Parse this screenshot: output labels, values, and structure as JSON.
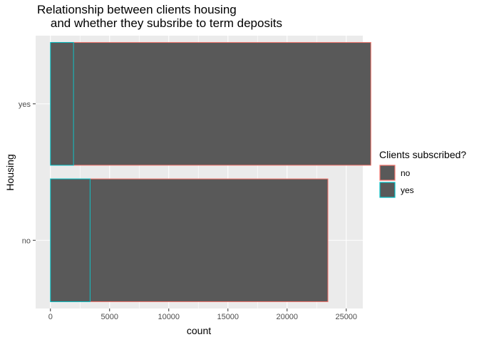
{
  "chart_data": {
    "type": "bar",
    "orientation": "horizontal",
    "stacked": true,
    "title_lines": [
      "Relationship between clients housing",
      "    and whether they subsribe to term deposits"
    ],
    "xlabel": "count",
    "ylabel": "Housing",
    "categories": [
      "no",
      "yes"
    ],
    "series": [
      {
        "name": "no",
        "values": [
          20100,
          25130
        ],
        "outline_color": "#F8766D"
      },
      {
        "name": "yes",
        "values": [
          3350,
          1950
        ],
        "outline_color": "#00BFC4"
      }
    ],
    "xlim": [
      -1250,
      26400
    ],
    "xticks": [
      0,
      5000,
      10000,
      15000,
      20000,
      25000
    ],
    "xtick_labels": [
      "0",
      "5000",
      "10000",
      "15000",
      "20000",
      "25000"
    ],
    "fill_color": "#595959",
    "panel_background": "#EBEBEB",
    "grid": true,
    "legend": {
      "title": "Clients subscribed?",
      "entries": [
        "no",
        "yes"
      ],
      "placement": "right"
    }
  }
}
